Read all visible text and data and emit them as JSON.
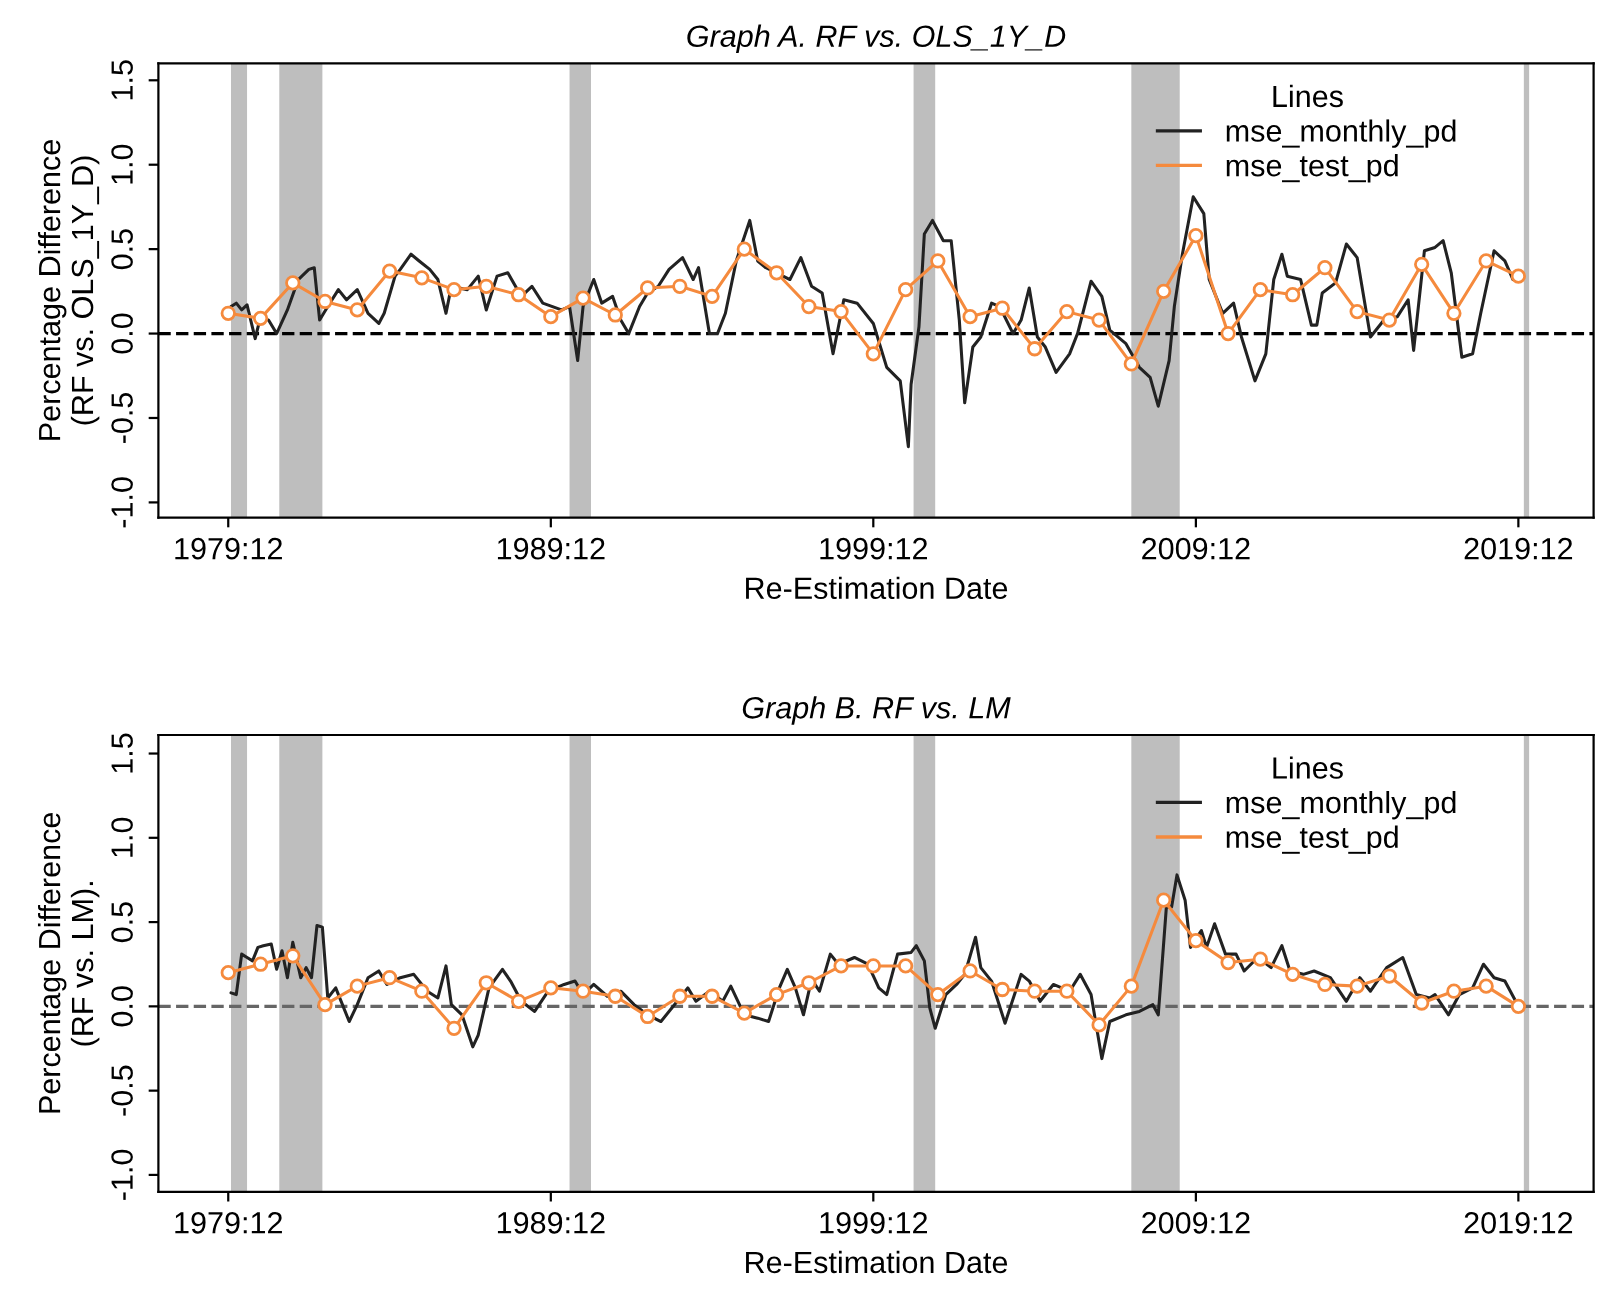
{
  "chart_data": [
    {
      "type": "line",
      "title": "Graph A. RF vs. OLS_1Y_D",
      "xlabel": "Re-Estimation Date",
      "ylabel": "Percentage Difference\n(RF vs. OLS_1Y_D)",
      "legend_title": "Lines",
      "legend": "top right",
      "grid": false,
      "xlim": [
        "1977-10",
        "2022-04"
      ],
      "xticks": [
        {
          "value": "1979-12",
          "label": "1979:12"
        },
        {
          "value": "1989-12",
          "label": "1989:12"
        },
        {
          "value": "1999-12",
          "label": "1999:12"
        },
        {
          "value": "2009-12",
          "label": "2009:12"
        },
        {
          "value": "2019-12",
          "label": "2019:12"
        }
      ],
      "ylim": [
        -1.09,
        1.6
      ],
      "yticks": [
        {
          "value": -1.0,
          "label": "-1.0"
        },
        {
          "value": -0.5,
          "label": "-0.5"
        },
        {
          "value": 0.0,
          "label": "0.0"
        },
        {
          "value": 0.5,
          "label": "0.5"
        },
        {
          "value": 1.0,
          "label": "1.0"
        },
        {
          "value": 1.5,
          "label": "1.5"
        }
      ],
      "bands": [
        {
          "axis": "x",
          "from": "1980-01",
          "to": "1980-07",
          "color": "#bebebe"
        },
        {
          "axis": "x",
          "from": "1981-07",
          "to": "1982-11",
          "color": "#bebebe"
        },
        {
          "axis": "x",
          "from": "1990-07",
          "to": "1991-03",
          "color": "#bebebe"
        },
        {
          "axis": "x",
          "from": "2001-03",
          "to": "2001-11",
          "color": "#bebebe"
        },
        {
          "axis": "x",
          "from": "2007-12",
          "to": "2009-06",
          "color": "#bebebe"
        },
        {
          "axis": "x",
          "from": "2020-02",
          "to": "2020-04",
          "color": "#bebebe"
        }
      ],
      "ref_lines": [
        {
          "axis": "y",
          "value": 0,
          "color": "#000000",
          "line_style": "dashed"
        }
      ],
      "series": [
        {
          "name": "mse_monthly_pd",
          "color": "#222222",
          "marker": "none",
          "line_style": "solid",
          "x": [
            "1980-01",
            "1980-03",
            "1980-05",
            "1980-07",
            "1980-10",
            "1980-12",
            "1981-03",
            "1981-06",
            "1981-10",
            "1982-02",
            "1982-06",
            "1982-08",
            "1982-10",
            "1983-01",
            "1983-05",
            "1983-08",
            "1983-12",
            "1984-04",
            "1984-08",
            "1984-10",
            "1985-02",
            "1985-04",
            "1985-08",
            "1985-11",
            "1986-03",
            "1986-06",
            "1986-09",
            "1986-11",
            "1987-05",
            "1987-09",
            "1987-12",
            "1988-04",
            "1988-08",
            "1989-01",
            "1989-05",
            "1989-09",
            "1990-04",
            "1990-07",
            "1990-10",
            "1990-12",
            "1991-04",
            "1991-07",
            "1991-11",
            "1992-02",
            "1992-05",
            "1992-09",
            "1992-12",
            "1993-04",
            "1993-08",
            "1994-01",
            "1994-05",
            "1994-07",
            "1994-11",
            "1995-02",
            "1995-05",
            "1995-09",
            "1996-02",
            "1996-05",
            "1996-08",
            "1996-12",
            "1997-05",
            "1997-09",
            "1998-01",
            "1998-05",
            "1998-09",
            "1999-01",
            "1999-06",
            "1999-12",
            "2000-05",
            "2000-10",
            "2001-01",
            "2001-02",
            "2001-05",
            "2001-07",
            "2001-10",
            "2002-02",
            "2002-05",
            "2002-08",
            "2002-10",
            "2003-01",
            "2003-04",
            "2003-08",
            "2003-11",
            "2004-04",
            "2004-07",
            "2004-10",
            "2005-01",
            "2005-04",
            "2005-08",
            "2006-01",
            "2006-04",
            "2006-09",
            "2007-01",
            "2007-04",
            "2007-10",
            "2008-03",
            "2008-07",
            "2008-10",
            "2009-02",
            "2009-04",
            "2009-07",
            "2009-11",
            "2010-03",
            "2010-05",
            "2010-10",
            "2011-02",
            "2011-05",
            "2011-10",
            "2012-02",
            "2012-05",
            "2012-08",
            "2012-10",
            "2013-03",
            "2013-07",
            "2013-09",
            "2013-11",
            "2014-04",
            "2014-08",
            "2014-12",
            "2015-05",
            "2015-10",
            "2016-03",
            "2016-07",
            "2016-09",
            "2017-01",
            "2017-05",
            "2017-08",
            "2017-11",
            "2018-03",
            "2018-07",
            "2018-10",
            "2019-03",
            "2019-07",
            "2019-10",
            "2019-11"
          ],
          "values": [
            0.16,
            0.18,
            0.14,
            0.17,
            -0.03,
            0.1,
            0.08,
            0.0,
            0.14,
            0.32,
            0.38,
            0.39,
            0.08,
            0.16,
            0.26,
            0.2,
            0.26,
            0.12,
            0.06,
            0.12,
            0.34,
            0.38,
            0.47,
            0.43,
            0.38,
            0.32,
            0.12,
            0.28,
            0.26,
            0.34,
            0.14,
            0.34,
            0.36,
            0.22,
            0.28,
            0.18,
            0.14,
            0.16,
            -0.16,
            0.16,
            0.32,
            0.18,
            0.22,
            0.08,
            0.0,
            0.16,
            0.24,
            0.28,
            0.38,
            0.45,
            0.32,
            0.39,
            0.0,
            0.0,
            0.12,
            0.43,
            0.67,
            0.43,
            0.39,
            0.36,
            0.32,
            0.45,
            0.28,
            0.24,
            -0.12,
            0.2,
            0.18,
            0.06,
            -0.2,
            -0.28,
            -0.67,
            -0.3,
            0.04,
            0.59,
            0.67,
            0.55,
            0.55,
            0.08,
            -0.41,
            -0.08,
            -0.02,
            0.18,
            0.16,
            0.0,
            0.08,
            0.27,
            -0.02,
            -0.08,
            -0.23,
            -0.12,
            0.0,
            0.31,
            0.22,
            0.02,
            -0.06,
            -0.2,
            -0.26,
            -0.43,
            -0.16,
            0.16,
            0.47,
            0.81,
            0.71,
            0.32,
            0.12,
            0.18,
            -0.02,
            -0.28,
            -0.12,
            0.32,
            0.47,
            0.34,
            0.32,
            0.05,
            0.05,
            0.24,
            0.3,
            0.53,
            0.45,
            -0.02,
            0.08,
            0.1,
            0.2,
            -0.1,
            0.49,
            0.51,
            0.55,
            0.36,
            -0.14,
            -0.12,
            0.12,
            0.49,
            0.43,
            0.32,
            0.36
          ]
        },
        {
          "name": "mse_test_pd",
          "color": "#f58a3d",
          "marker": "circle",
          "line_style": "solid",
          "x": [
            "1979-12",
            "1980-12",
            "1981-12",
            "1982-12",
            "1983-12",
            "1984-12",
            "1985-12",
            "1986-12",
            "1987-12",
            "1988-12",
            "1989-12",
            "1990-12",
            "1991-12",
            "1992-12",
            "1993-12",
            "1994-12",
            "1995-12",
            "1996-12",
            "1997-12",
            "1998-12",
            "1999-12",
            "2000-12",
            "2001-12",
            "2002-12",
            "2003-12",
            "2004-12",
            "2005-12",
            "2006-12",
            "2007-12",
            "2008-12",
            "2009-12",
            "2010-12",
            "2011-12",
            "2012-12",
            "2013-12",
            "2014-12",
            "2015-12",
            "2016-12",
            "2017-12",
            "2018-12",
            "2019-12"
          ],
          "values": [
            0.12,
            0.09,
            0.3,
            0.19,
            0.14,
            0.37,
            0.33,
            0.26,
            0.28,
            0.23,
            0.1,
            0.21,
            0.11,
            0.27,
            0.28,
            0.22,
            0.5,
            0.36,
            0.16,
            0.13,
            -0.12,
            0.26,
            0.43,
            0.1,
            0.15,
            -0.09,
            0.13,
            0.08,
            -0.18,
            0.25,
            0.58,
            0.0,
            0.26,
            0.23,
            0.39,
            0.13,
            0.08,
            0.41,
            0.12,
            0.43,
            0.34
          ]
        }
      ]
    },
    {
      "type": "line",
      "title": "Graph B. RF vs. LM",
      "xlabel": "Re-Estimation Date",
      "ylabel": "Percentage Difference\n(RF vs. LM).",
      "legend_title": "Lines",
      "legend": "top right",
      "grid": false,
      "xlim": [
        "1977-10",
        "2022-04"
      ],
      "xticks": [
        {
          "value": "1979-12",
          "label": "1979:12"
        },
        {
          "value": "1989-12",
          "label": "1989:12"
        },
        {
          "value": "1999-12",
          "label": "1999:12"
        },
        {
          "value": "2009-12",
          "label": "2009:12"
        },
        {
          "value": "2019-12",
          "label": "2019:12"
        }
      ],
      "ylim": [
        -1.1,
        1.61
      ],
      "yticks": [
        {
          "value": -1.0,
          "label": "-1.0"
        },
        {
          "value": -0.5,
          "label": "-0.5"
        },
        {
          "value": 0.0,
          "label": "0.0"
        },
        {
          "value": 0.5,
          "label": "0.5"
        },
        {
          "value": 1.0,
          "label": "1.0"
        },
        {
          "value": 1.5,
          "label": "1.5"
        }
      ],
      "bands": [
        {
          "axis": "x",
          "from": "1980-01",
          "to": "1980-07",
          "color": "#bebebe"
        },
        {
          "axis": "x",
          "from": "1981-07",
          "to": "1982-11",
          "color": "#bebebe"
        },
        {
          "axis": "x",
          "from": "1990-07",
          "to": "1991-03",
          "color": "#bebebe"
        },
        {
          "axis": "x",
          "from": "2001-03",
          "to": "2001-11",
          "color": "#bebebe"
        },
        {
          "axis": "x",
          "from": "2007-12",
          "to": "2009-06",
          "color": "#bebebe"
        },
        {
          "axis": "x",
          "from": "2020-02",
          "to": "2020-04",
          "color": "#bebebe"
        }
      ],
      "ref_lines": [
        {
          "axis": "y",
          "value": 0,
          "color": "#666666",
          "line_style": "dashed"
        }
      ],
      "series": [
        {
          "name": "mse_monthly_pd",
          "color": "#222222",
          "marker": "none",
          "line_style": "solid",
          "x": [
            "1980-01",
            "1980-03",
            "1980-05",
            "1980-07",
            "1980-09",
            "1980-11",
            "1981-01",
            "1981-04",
            "1981-06",
            "1981-08",
            "1981-10",
            "1981-12",
            "1982-03",
            "1982-05",
            "1982-07",
            "1982-09",
            "1982-11",
            "1983-01",
            "1983-04",
            "1983-09",
            "1983-12",
            "1984-04",
            "1984-08",
            "1984-11",
            "1985-04",
            "1985-09",
            "1986-02",
            "1986-06",
            "1986-09",
            "1986-11",
            "1987-03",
            "1987-07",
            "1987-09",
            "1988-01",
            "1988-06",
            "1988-09",
            "1989-01",
            "1989-06",
            "1989-11",
            "1990-05",
            "1990-09",
            "1990-12",
            "1991-04",
            "1991-09",
            "1992-02",
            "1992-07",
            "1992-12",
            "1993-05",
            "1993-10",
            "1994-03",
            "1994-06",
            "1994-11",
            "1995-04",
            "1995-07",
            "1995-12",
            "1996-05",
            "1996-09",
            "1997-01",
            "1997-04",
            "1997-07",
            "1997-10",
            "1998-01",
            "1998-04",
            "1998-08",
            "1998-11",
            "1999-05",
            "1999-10",
            "2000-02",
            "2000-05",
            "2000-09",
            "2001-02",
            "2001-04",
            "2001-07",
            "2001-09",
            "2001-11",
            "2002-03",
            "2002-07",
            "2002-10",
            "2003-02",
            "2003-04",
            "2003-08",
            "2004-01",
            "2004-07",
            "2004-10",
            "2005-02",
            "2005-07",
            "2006-01",
            "2006-05",
            "2006-09",
            "2007-01",
            "2007-04",
            "2007-10",
            "2008-03",
            "2008-08",
            "2008-10",
            "2009-01",
            "2009-03",
            "2009-05",
            "2009-08",
            "2009-10",
            "2010-02",
            "2010-04",
            "2010-07",
            "2010-11",
            "2011-03",
            "2011-06",
            "2011-11",
            "2012-04",
            "2012-08",
            "2012-11",
            "2013-04",
            "2013-08",
            "2014-02",
            "2014-08",
            "2015-01",
            "2015-05",
            "2015-11",
            "2016-05",
            "2016-10",
            "2017-03",
            "2017-05",
            "2017-10",
            "2018-02",
            "2018-07",
            "2018-11",
            "2019-03",
            "2019-07",
            "2019-11"
          ],
          "values": [
            0.08,
            0.07,
            0.31,
            0.29,
            0.27,
            0.35,
            0.36,
            0.37,
            0.22,
            0.33,
            0.17,
            0.38,
            0.17,
            0.23,
            0.17,
            0.48,
            0.47,
            0.05,
            0.11,
            -0.09,
            0.01,
            0.17,
            0.21,
            0.13,
            0.17,
            0.19,
            0.09,
            0.05,
            0.24,
            0.01,
            -0.05,
            -0.24,
            -0.17,
            0.11,
            0.22,
            0.15,
            0.03,
            -0.03,
            0.09,
            0.13,
            0.15,
            0.07,
            0.13,
            0.06,
            0.09,
            0.01,
            -0.05,
            -0.09,
            0.01,
            0.11,
            0.03,
            0.09,
            0.03,
            0.12,
            -0.05,
            -0.07,
            -0.09,
            0.11,
            0.22,
            0.11,
            -0.05,
            0.16,
            0.09,
            0.31,
            0.25,
            0.29,
            0.25,
            0.11,
            0.07,
            0.31,
            0.32,
            0.36,
            0.27,
            -0.01,
            -0.13,
            0.07,
            0.13,
            0.19,
            0.41,
            0.23,
            0.15,
            -0.1,
            0.19,
            0.15,
            0.03,
            0.13,
            0.09,
            0.19,
            0.07,
            -0.31,
            -0.09,
            -0.05,
            -0.03,
            0.01,
            -0.05,
            0.59,
            0.59,
            0.78,
            0.63,
            0.35,
            0.45,
            0.35,
            0.49,
            0.31,
            0.31,
            0.21,
            0.29,
            0.23,
            0.36,
            0.21,
            0.19,
            0.21,
            0.17,
            0.03,
            0.17,
            0.09,
            0.23,
            0.29,
            0.07,
            0.05,
            0.07,
            -0.05,
            0.07,
            0.11,
            0.25,
            0.17,
            0.15,
            0.03
          ]
        },
        {
          "name": "mse_test_pd",
          "color": "#f58a3d",
          "marker": "circle",
          "line_style": "solid",
          "x": [
            "1979-12",
            "1980-12",
            "1981-12",
            "1982-12",
            "1983-12",
            "1984-12",
            "1985-12",
            "1986-12",
            "1987-12",
            "1988-12",
            "1989-12",
            "1990-12",
            "1991-12",
            "1992-12",
            "1993-12",
            "1994-12",
            "1995-12",
            "1996-12",
            "1997-12",
            "1998-12",
            "1999-12",
            "2000-12",
            "2001-12",
            "2002-12",
            "2003-12",
            "2004-12",
            "2005-12",
            "2006-12",
            "2007-12",
            "2008-12",
            "2009-12",
            "2010-12",
            "2011-12",
            "2012-12",
            "2013-12",
            "2014-12",
            "2015-12",
            "2016-12",
            "2017-12",
            "2018-12",
            "2019-12"
          ],
          "values": [
            0.2,
            0.25,
            0.3,
            0.01,
            0.12,
            0.17,
            0.09,
            -0.13,
            0.14,
            0.03,
            0.11,
            0.09,
            0.06,
            -0.06,
            0.06,
            0.06,
            -0.04,
            0.07,
            0.14,
            0.24,
            0.24,
            0.24,
            0.07,
            0.21,
            0.1,
            0.09,
            0.09,
            -0.11,
            0.12,
            0.63,
            0.39,
            0.26,
            0.28,
            0.19,
            0.13,
            0.12,
            0.18,
            0.02,
            0.09,
            0.12,
            0.0
          ]
        }
      ]
    }
  ]
}
